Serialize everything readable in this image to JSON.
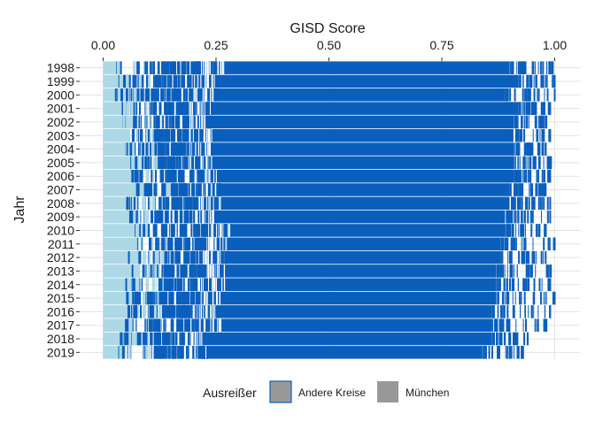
{
  "chart_data": {
    "type": "strip",
    "xlabel": "GISD Score",
    "ylabel": "Jahr",
    "xlim": [
      0.0,
      1.0
    ],
    "x_axis_position": "top",
    "x_ticks": [
      "0.00",
      "0.25",
      "0.50",
      "0.75",
      "1.00"
    ],
    "x_tick_values": [
      0.0,
      0.25,
      0.5,
      0.75,
      1.0
    ],
    "categories": [
      "1998",
      "1999",
      "2000",
      "2001",
      "2002",
      "2003",
      "2004",
      "2005",
      "2006",
      "2007",
      "2008",
      "2009",
      "2010",
      "2011",
      "2012",
      "2013",
      "2014",
      "2015",
      "2016",
      "2017",
      "2018",
      "2019"
    ],
    "grid": true,
    "colors": {
      "andere_kreise": "#0a5fbd",
      "muenchen": "#add8e6",
      "legend_key": "#999999",
      "grid": "#e3e3e3"
    },
    "series": [
      {
        "name": "Andere Kreise",
        "color": "#0a5fbd"
      },
      {
        "name": "München",
        "color": "#add8e6"
      }
    ],
    "per_year_ranges": [
      {
        "year": "1998",
        "muenchen_max": 0.04,
        "dense_min": 0.27,
        "dense_max": 0.9,
        "max": 0.995
      },
      {
        "year": "1999",
        "muenchen_max": 0.05,
        "dense_min": 0.25,
        "dense_max": 0.92,
        "max": 1.0
      },
      {
        "year": "2000",
        "muenchen_max": 0.04,
        "dense_min": 0.25,
        "dense_max": 0.89,
        "max": 1.0
      },
      {
        "year": "2001",
        "muenchen_max": 0.05,
        "dense_min": 0.24,
        "dense_max": 0.92,
        "max": 0.99
      },
      {
        "year": "2002",
        "muenchen_max": 0.06,
        "dense_min": 0.24,
        "dense_max": 0.91,
        "max": 0.98
      },
      {
        "year": "2003",
        "muenchen_max": 0.06,
        "dense_min": 0.24,
        "dense_max": 0.9,
        "max": 0.99
      },
      {
        "year": "2004",
        "muenchen_max": 0.07,
        "dense_min": 0.24,
        "dense_max": 0.91,
        "max": 0.98
      },
      {
        "year": "2005",
        "muenchen_max": 0.07,
        "dense_min": 0.24,
        "dense_max": 0.91,
        "max": 0.99
      },
      {
        "year": "2006",
        "muenchen_max": 0.07,
        "dense_min": 0.25,
        "dense_max": 0.91,
        "max": 0.99
      },
      {
        "year": "2007",
        "muenchen_max": 0.1,
        "dense_min": 0.26,
        "dense_max": 0.9,
        "max": 0.98
      },
      {
        "year": "2008",
        "muenchen_max": 0.08,
        "dense_min": 0.26,
        "dense_max": 0.9,
        "max": 0.99
      },
      {
        "year": "2009",
        "muenchen_max": 0.08,
        "dense_min": 0.25,
        "dense_max": 0.89,
        "max": 0.99
      },
      {
        "year": "2010",
        "muenchen_max": 0.08,
        "dense_min": 0.28,
        "dense_max": 0.89,
        "max": 0.98
      },
      {
        "year": "2011",
        "muenchen_max": 0.08,
        "dense_min": 0.28,
        "dense_max": 0.88,
        "max": 1.0
      },
      {
        "year": "2012",
        "muenchen_max": 0.08,
        "dense_min": 0.27,
        "dense_max": 0.88,
        "max": 0.98
      },
      {
        "year": "2013",
        "muenchen_max": 0.08,
        "dense_min": 0.27,
        "dense_max": 0.87,
        "max": 0.99
      },
      {
        "year": "2014",
        "muenchen_max": 0.08,
        "dense_min": 0.27,
        "dense_max": 0.87,
        "max": 0.99
      },
      {
        "year": "2015",
        "muenchen_max": 0.08,
        "dense_min": 0.26,
        "dense_max": 0.87,
        "max": 1.0
      },
      {
        "year": "2016",
        "muenchen_max": 0.08,
        "dense_min": 0.25,
        "dense_max": 0.86,
        "max": 0.99
      },
      {
        "year": "2017",
        "muenchen_max": 0.07,
        "dense_min": 0.26,
        "dense_max": 0.86,
        "max": 0.98
      },
      {
        "year": "2018",
        "muenchen_max": 0.06,
        "dense_min": 0.22,
        "dense_max": 0.86,
        "max": 0.94
      },
      {
        "year": "2019",
        "muenchen_max": 0.05,
        "dense_min": 0.23,
        "dense_max": 0.84,
        "max": 0.93
      }
    ],
    "legend": {
      "title": "Ausreißer",
      "position": "bottom",
      "items": [
        {
          "label": "Andere Kreise",
          "color": "#999999"
        },
        {
          "label": "München",
          "color": "#999999"
        }
      ]
    }
  }
}
